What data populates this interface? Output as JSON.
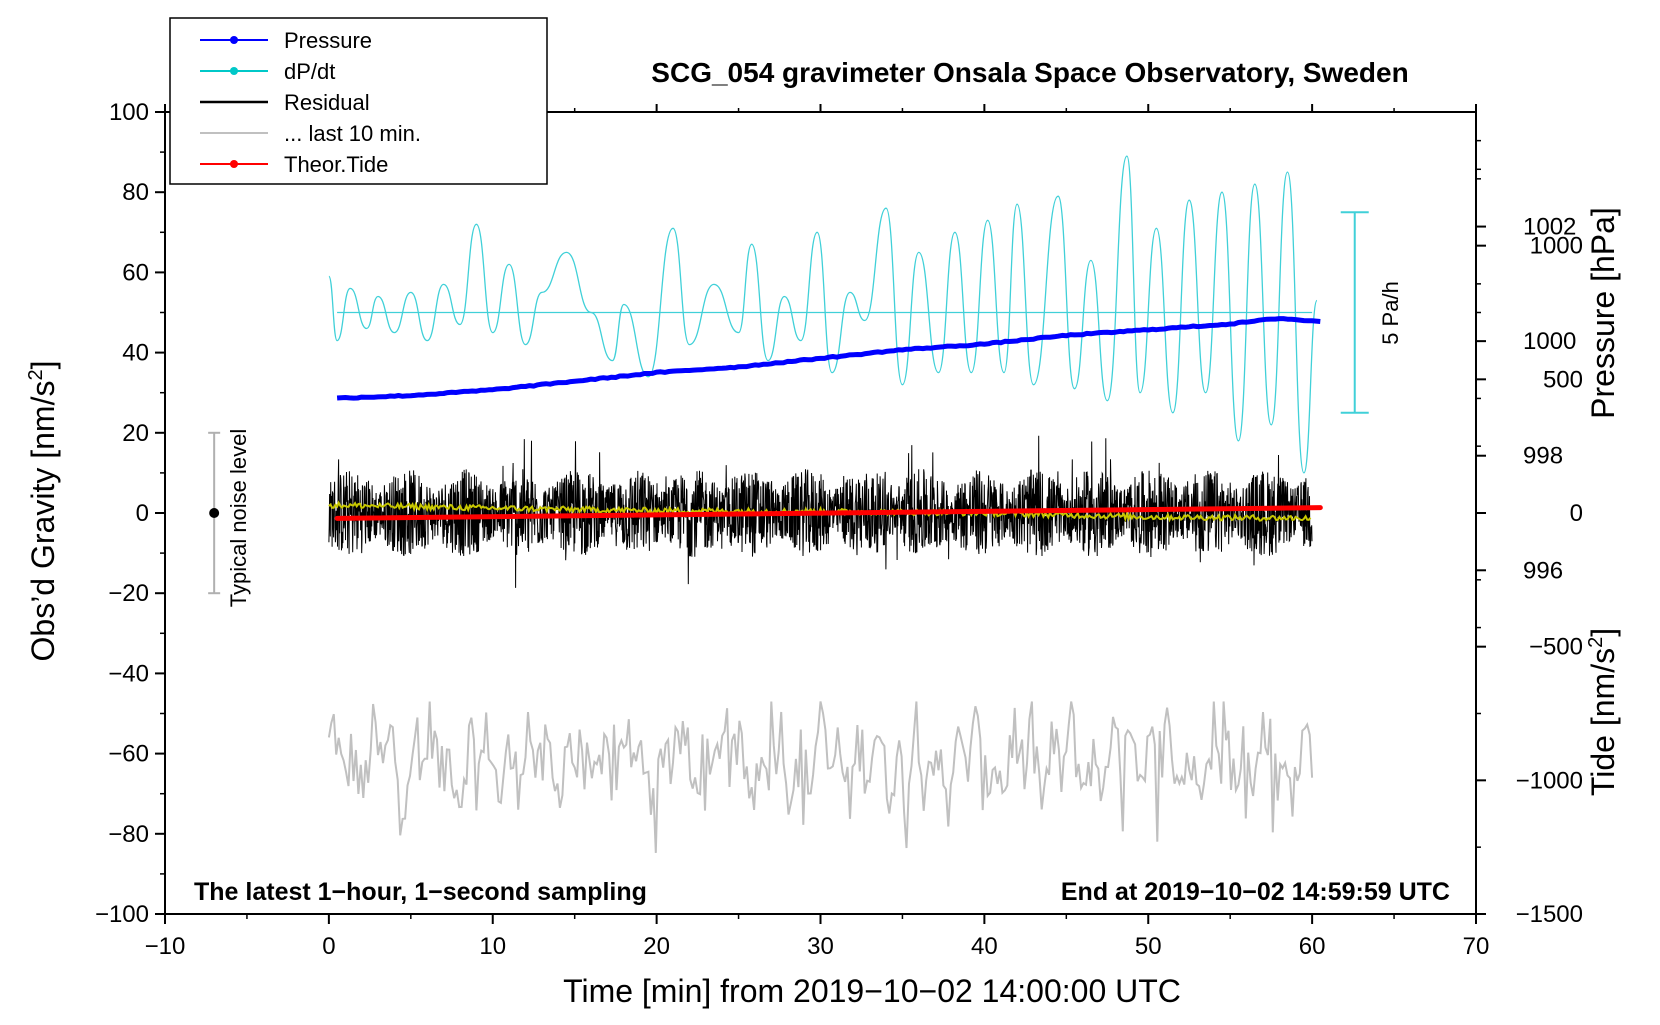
{
  "chart_data": {
    "type": "line",
    "title": "SCG_054 gravimeter Onsala Space Observatory, Sweden",
    "xlabel": "Time [min] from 2019−10−02 14:00:00 UTC",
    "ylabel_left": "Obs’d Gravity [nm/s²]",
    "ylabel_right_top": "Pressure [hPa]",
    "ylabel_right_bottom": "Tide [nm/s²]",
    "xlim": [
      -10,
      70
    ],
    "ylim": [
      -100,
      100
    ],
    "pressure_lim": [
      990,
      1004
    ],
    "tide_lim": [
      -1500,
      1500
    ],
    "x_ticks": [
      "−10",
      "0",
      "10",
      "20",
      "30",
      "40",
      "50",
      "60",
      "70"
    ],
    "y_ticks": [
      "−100",
      "−80",
      "−60",
      "−40",
      "−20",
      "0",
      "20",
      "40",
      "60",
      "80",
      "100"
    ],
    "pressure_ticks": [
      "996",
      "998",
      "1000",
      "1002"
    ],
    "tide_ticks": [
      "−1500",
      "−1000",
      "−500",
      "0",
      "500",
      "1000"
    ],
    "footer_left": "The latest 1−hour, 1−second sampling",
    "footer_right": "End at 2019−10−02 14:59:59 UTC",
    "noise_label": "Typical noise level",
    "dpdt_scale_label": "5 Pa/h",
    "legend": [
      {
        "label": "Pressure",
        "color": "#0000ff",
        "marker": true
      },
      {
        "label": "dP/dt",
        "color": "#00c8c8",
        "marker": true
      },
      {
        "label": "Residual",
        "color": "#000000",
        "marker": false
      },
      {
        "label": "... last 10 min.",
        "color": "#c0c0c0",
        "marker": false
      },
      {
        "label": "Theor.Tide",
        "color": "#ff0000",
        "marker": true
      }
    ],
    "colors": {
      "pressure": "#0000ff",
      "dpdt": "#40d0d8",
      "residual": "#000000",
      "smooth": "#c8c800",
      "last10": "#c0c0c0",
      "tide": "#ff0000",
      "noise": "#b0b0b0"
    },
    "series": [
      {
        "name": "Pressure",
        "unit": "hPa",
        "x": [
          0,
          5,
          10,
          15,
          20,
          25,
          30,
          35,
          40,
          45,
          50,
          55,
          58,
          60
        ],
        "values": [
          999.0,
          999.05,
          999.15,
          999.3,
          999.45,
          999.55,
          999.7,
          999.85,
          999.95,
          1000.1,
          1000.2,
          1000.3,
          1000.4,
          1000.35
        ]
      },
      {
        "name": "dP/dt",
        "unit": "gravity-axis units",
        "baseline": 50,
        "x": [
          0,
          0.5,
          1.3,
          2.3,
          3.0,
          4.0,
          5.0,
          6.0,
          7.0,
          8.0,
          9.0,
          10.0,
          11.0,
          12.0,
          13.0,
          14.5,
          16.0,
          17.3,
          18.0,
          19.5,
          21.0,
          22.0,
          23.5,
          25.0,
          25.8,
          26.8,
          27.8,
          28.8,
          29.8,
          30.7,
          31.8,
          32.7,
          34.0,
          35.0,
          36.0,
          37.2,
          38.2,
          39.2,
          40.2,
          41.2,
          42.0,
          43.0,
          44.5,
          45.5,
          46.5,
          47.5,
          48.7,
          49.5,
          50.5,
          51.5,
          52.5,
          53.5,
          54.5,
          55.5,
          56.5,
          57.5,
          58.5,
          59.5,
          60.3
        ],
        "values": [
          59,
          43,
          56,
          46,
          54,
          45,
          55,
          43,
          57,
          47,
          72,
          45,
          62,
          42,
          55,
          65,
          50,
          38,
          52,
          34,
          71,
          42,
          57,
          45,
          67,
          38,
          54,
          43,
          70,
          35,
          55,
          48,
          76,
          32,
          65,
          35,
          70,
          35,
          73,
          35,
          77,
          32,
          79,
          31,
          63,
          28,
          89,
          30,
          71,
          25,
          78,
          30,
          80,
          18,
          82,
          22,
          85,
          10,
          53
        ]
      },
      {
        "name": "Residual",
        "unit": "nm/s²",
        "x_range": [
          0,
          60
        ],
        "amplitude": 20
      },
      {
        "name": "Residual smoothed",
        "unit": "nm/s²",
        "x": [
          0,
          10,
          20,
          30,
          40,
          50,
          60
        ],
        "values": [
          2,
          1.2,
          0.6,
          0.4,
          0,
          -1,
          -1.3
        ]
      },
      {
        "name": "... last 10 min.",
        "unit": "nm/s²",
        "x_range": [
          0,
          60
        ],
        "center": -62,
        "range": [
          -87,
          -47
        ]
      },
      {
        "name": "Theor.Tide",
        "unit": "nm/s²",
        "x": [
          0,
          60.5
        ],
        "values": [
          -20,
          20
        ]
      }
    ],
    "noise_bar": {
      "x": -7,
      "center": 0,
      "low": -20,
      "high": 20
    },
    "dpdt_scale_bar": {
      "x": 62.6,
      "low": 25,
      "high": 75
    }
  }
}
